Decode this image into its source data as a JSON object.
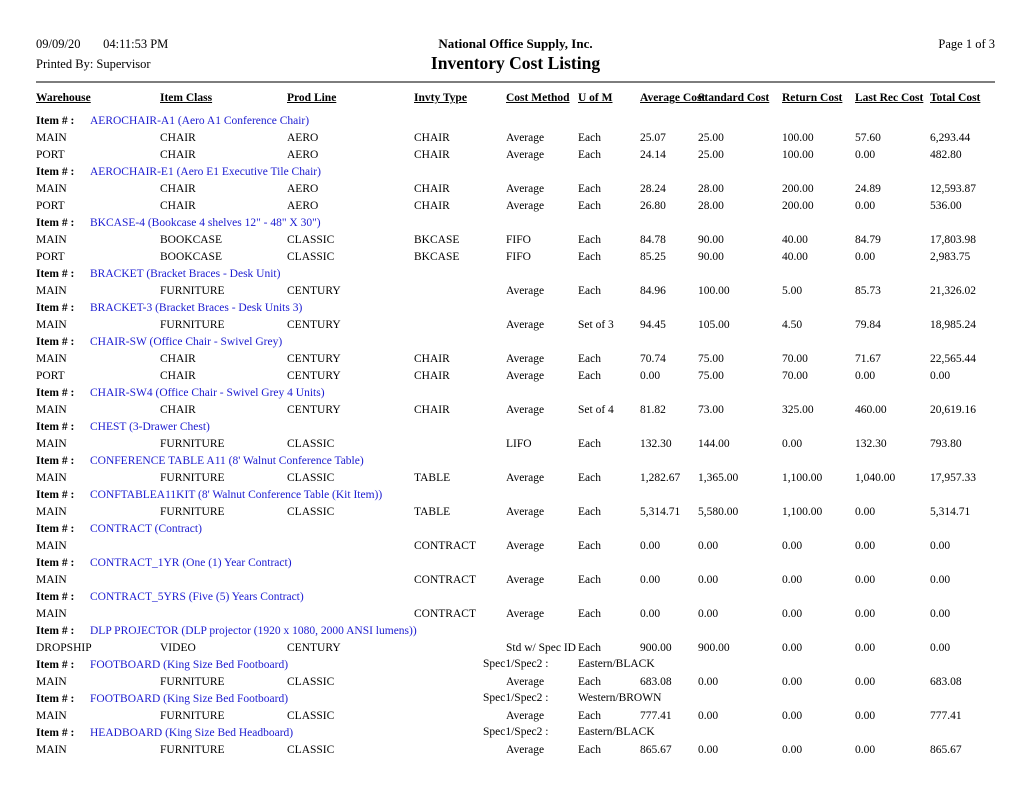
{
  "header": {
    "date": "09/09/20",
    "time": "04:11:53 PM",
    "printed_by": "Printed By: Supervisor",
    "company": "National Office Supply, Inc.",
    "title": "Inventory Cost Listing",
    "page_label": "Page 1 of 3"
  },
  "colors": {
    "item_link_blue": "#1b1bd1",
    "divider_gray": "#7d7d7d"
  },
  "table": {
    "item_label": "Item # :",
    "spec_label": "Spec1/Spec2 :",
    "columns": [
      "Warehouse",
      "Item Class",
      "Prod Line",
      "Invty Type",
      "Cost Method",
      "U of M",
      "Average Cost",
      "Standard Cost",
      "Return Cost",
      "Last Rec Cost",
      "Total Cost"
    ],
    "column_keys": [
      "warehouse",
      "item-class",
      "prod-line",
      "invty-type",
      "cost-method",
      "uom",
      "average-cost",
      "standard-cost",
      "return-cost",
      "last-rec-cost",
      "total-cost"
    ],
    "groups": [
      {
        "item": "AEROCHAIR-A1 (Aero A1 Conference Chair)",
        "rows": [
          [
            "MAIN",
            "CHAIR",
            "AERO",
            "CHAIR",
            "Average",
            "Each",
            "25.07",
            "25.00",
            "100.00",
            "57.60",
            "6,293.44"
          ],
          [
            "PORT",
            "CHAIR",
            "AERO",
            "CHAIR",
            "Average",
            "Each",
            "24.14",
            "25.00",
            "100.00",
            "0.00",
            "482.80"
          ]
        ]
      },
      {
        "item": "AEROCHAIR-E1 (Aero E1 Executive Tile Chair)",
        "rows": [
          [
            "MAIN",
            "CHAIR",
            "AERO",
            "CHAIR",
            "Average",
            "Each",
            "28.24",
            "28.00",
            "200.00",
            "24.89",
            "12,593.87"
          ],
          [
            "PORT",
            "CHAIR",
            "AERO",
            "CHAIR",
            "Average",
            "Each",
            "26.80",
            "28.00",
            "200.00",
            "0.00",
            "536.00"
          ]
        ]
      },
      {
        "item": "BKCASE-4 (Bookcase 4 shelves 12\" - 48\" X 30\")",
        "rows": [
          [
            "MAIN",
            "BOOKCASE",
            "CLASSIC",
            "BKCASE",
            "FIFO",
            "Each",
            "84.78",
            "90.00",
            "40.00",
            "84.79",
            "17,803.98"
          ],
          [
            "PORT",
            "BOOKCASE",
            "CLASSIC",
            "BKCASE",
            "FIFO",
            "Each",
            "85.25",
            "90.00",
            "40.00",
            "0.00",
            "2,983.75"
          ]
        ]
      },
      {
        "item": "BRACKET (Bracket Braces - Desk Unit)",
        "rows": [
          [
            "MAIN",
            "FURNITURE",
            "CENTURY",
            "",
            "Average",
            "Each",
            "84.96",
            "100.00",
            "5.00",
            "85.73",
            "21,326.02"
          ]
        ]
      },
      {
        "item": "BRACKET-3 (Bracket Braces - Desk Units 3)",
        "rows": [
          [
            "MAIN",
            "FURNITURE",
            "CENTURY",
            "",
            "Average",
            "Set of 3",
            "94.45",
            "105.00",
            "4.50",
            "79.84",
            "18,985.24"
          ]
        ]
      },
      {
        "item": "CHAIR-SW (Office Chair - Swivel Grey)",
        "rows": [
          [
            "MAIN",
            "CHAIR",
            "CENTURY",
            "CHAIR",
            "Average",
            "Each",
            "70.74",
            "75.00",
            "70.00",
            "71.67",
            "22,565.44"
          ],
          [
            "PORT",
            "CHAIR",
            "CENTURY",
            "CHAIR",
            "Average",
            "Each",
            "0.00",
            "75.00",
            "70.00",
            "0.00",
            "0.00"
          ]
        ]
      },
      {
        "item": "CHAIR-SW4 (Office Chair - Swivel Grey 4 Units)",
        "rows": [
          [
            "MAIN",
            "CHAIR",
            "CENTURY",
            "CHAIR",
            "Average",
            "Set of 4",
            "81.82",
            "73.00",
            "325.00",
            "460.00",
            "20,619.16"
          ]
        ]
      },
      {
        "item": "CHEST (3-Drawer Chest)",
        "rows": [
          [
            "MAIN",
            "FURNITURE",
            "CLASSIC",
            "",
            "LIFO",
            "Each",
            "132.30",
            "144.00",
            "0.00",
            "132.30",
            "793.80"
          ]
        ]
      },
      {
        "item": "CONFERENCE TABLE A11 (8' Walnut Conference Table)",
        "rows": [
          [
            "MAIN",
            "FURNITURE",
            "CLASSIC",
            "TABLE",
            "Average",
            "Each",
            "1,282.67",
            "1,365.00",
            "1,100.00",
            "1,040.00",
            "17,957.33"
          ]
        ]
      },
      {
        "item": "CONFTABLEA11KIT (8' Walnut Conference Table (Kit Item))",
        "rows": [
          [
            "MAIN",
            "FURNITURE",
            "CLASSIC",
            "TABLE",
            "Average",
            "Each",
            "5,314.71",
            "5,580.00",
            "1,100.00",
            "0.00",
            "5,314.71"
          ]
        ]
      },
      {
        "item": "CONTRACT (Contract)",
        "rows": [
          [
            "MAIN",
            "",
            "",
            "CONTRACT",
            "Average",
            "Each",
            "0.00",
            "0.00",
            "0.00",
            "0.00",
            "0.00"
          ]
        ]
      },
      {
        "item": "CONTRACT_1YR (One (1) Year Contract)",
        "rows": [
          [
            "MAIN",
            "",
            "",
            "CONTRACT",
            "Average",
            "Each",
            "0.00",
            "0.00",
            "0.00",
            "0.00",
            "0.00"
          ]
        ]
      },
      {
        "item": "CONTRACT_5YRS (Five (5) Years Contract)",
        "rows": [
          [
            "MAIN",
            "",
            "",
            "CONTRACT",
            "Average",
            "Each",
            "0.00",
            "0.00",
            "0.00",
            "0.00",
            "0.00"
          ]
        ]
      },
      {
        "item": "DLP PROJECTOR (DLP projector (1920 x 1080, 2000 ANSI lumens))",
        "rows": [
          [
            "DROPSHIP",
            "VIDEO",
            "CENTURY",
            "",
            "Std w/ Spec ID",
            "Each",
            "900.00",
            "900.00",
            "0.00",
            "0.00",
            "0.00"
          ]
        ]
      },
      {
        "item": "FOOTBOARD (King Size Bed Footboard)",
        "spec": "Eastern/BLACK",
        "rows": [
          [
            "MAIN",
            "FURNITURE",
            "CLASSIC",
            "",
            "Average",
            "Each",
            "683.08",
            "0.00",
            "0.00",
            "0.00",
            "683.08"
          ]
        ]
      },
      {
        "item": "FOOTBOARD (King Size Bed Footboard)",
        "spec": "Western/BROWN",
        "rows": [
          [
            "MAIN",
            "FURNITURE",
            "CLASSIC",
            "",
            "Average",
            "Each",
            "777.41",
            "0.00",
            "0.00",
            "0.00",
            "777.41"
          ]
        ]
      },
      {
        "item": "HEADBOARD (King Size Bed Headboard)",
        "spec": "Eastern/BLACK",
        "rows": [
          [
            "MAIN",
            "FURNITURE",
            "CLASSIC",
            "",
            "Average",
            "Each",
            "865.67",
            "0.00",
            "0.00",
            "0.00",
            "865.67"
          ]
        ]
      }
    ]
  }
}
